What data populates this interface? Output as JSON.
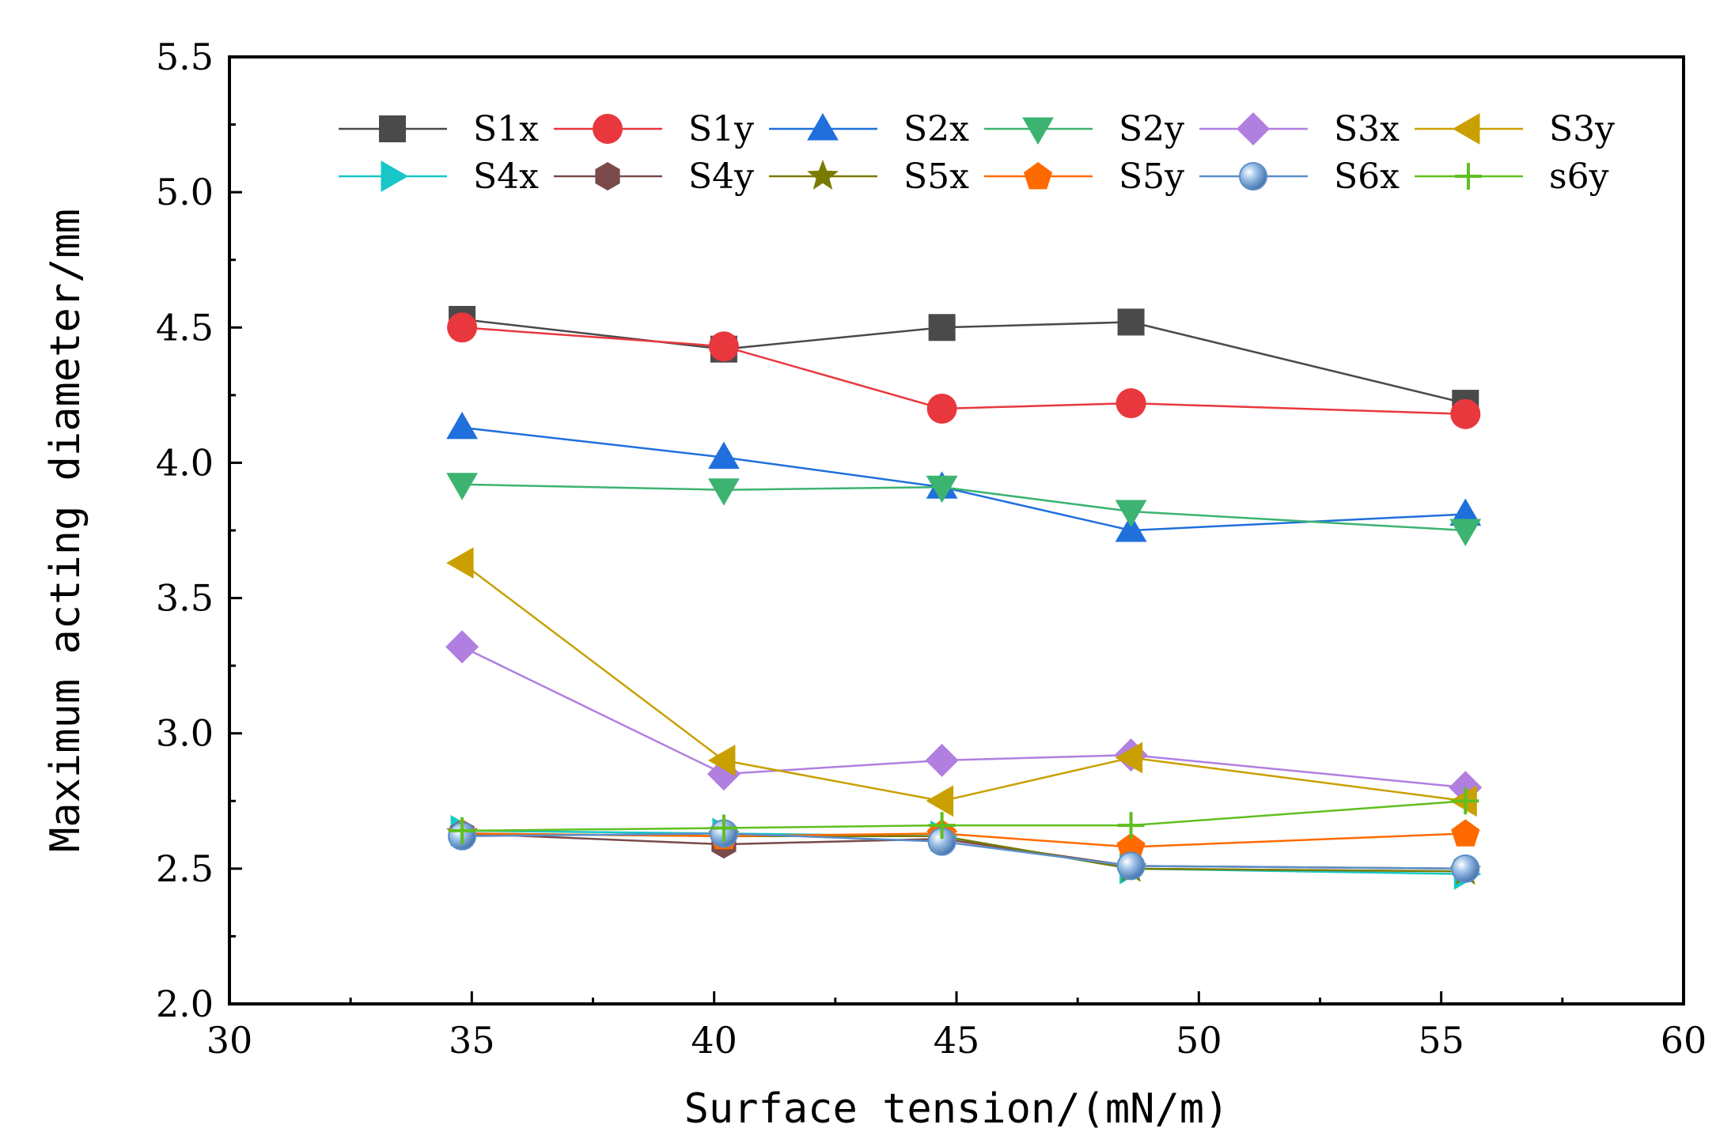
{
  "chart_data": {
    "type": "line",
    "title": "",
    "xlabel": "Surface tension/(mN/m)",
    "ylabel": "Maximum acting diameter/mm",
    "xlim": [
      30,
      60
    ],
    "ylim": [
      2.0,
      5.5
    ],
    "xticks": [
      "30",
      "35",
      "40",
      "45",
      "50",
      "55",
      "60"
    ],
    "yticks": [
      "2.0",
      "2.5",
      "3.0",
      "3.5",
      "4.0",
      "4.5",
      "5.0",
      "5.5"
    ],
    "grid": false,
    "legend_position": "top",
    "x": [
      34.8,
      40.2,
      44.7,
      48.6,
      55.5
    ],
    "series": [
      {
        "name": "S1x",
        "marker": "square",
        "color": "#4a4a4a",
        "values": [
          4.53,
          4.42,
          4.5,
          4.52,
          4.22
        ]
      },
      {
        "name": "S1y",
        "marker": "circle",
        "color": "#e8383d",
        "values": [
          4.5,
          4.43,
          4.2,
          4.22,
          4.18
        ]
      },
      {
        "name": "S2x",
        "marker": "triangle-up",
        "color": "#1f6fdc",
        "values": [
          4.13,
          4.02,
          3.91,
          3.75,
          3.81
        ]
      },
      {
        "name": "S2y",
        "marker": "triangle-down",
        "color": "#3cb371",
        "values": [
          3.92,
          3.9,
          3.91,
          3.82,
          3.75
        ]
      },
      {
        "name": "S3x",
        "marker": "diamond",
        "color": "#b07fe0",
        "values": [
          3.32,
          2.85,
          2.9,
          2.92,
          2.8
        ]
      },
      {
        "name": "S3y",
        "marker": "triangle-left",
        "color": "#c9a000",
        "values": [
          3.63,
          2.9,
          2.75,
          2.91,
          2.75
        ]
      },
      {
        "name": "S4x",
        "marker": "triangle-right",
        "color": "#17c7c7",
        "values": [
          2.64,
          2.63,
          2.62,
          2.5,
          2.48
        ]
      },
      {
        "name": "S4y",
        "marker": "hexagon",
        "color": "#7a4a4a",
        "values": [
          2.63,
          2.59,
          2.61,
          2.51,
          2.5
        ]
      },
      {
        "name": "S5x",
        "marker": "star",
        "color": "#7a7a00",
        "values": [
          2.63,
          2.62,
          2.62,
          2.5,
          2.49
        ]
      },
      {
        "name": "S5y",
        "marker": "pentagon",
        "color": "#ff6a00",
        "values": [
          2.63,
          2.62,
          2.63,
          2.58,
          2.63
        ]
      },
      {
        "name": "S6x",
        "marker": "sphere",
        "color": "#5b8ec8",
        "values": [
          2.62,
          2.63,
          2.6,
          2.51,
          2.5
        ]
      },
      {
        "name": "s6y",
        "marker": "plus",
        "color": "#5fbf1f",
        "values": [
          2.64,
          2.65,
          2.66,
          2.66,
          2.75
        ]
      }
    ]
  }
}
